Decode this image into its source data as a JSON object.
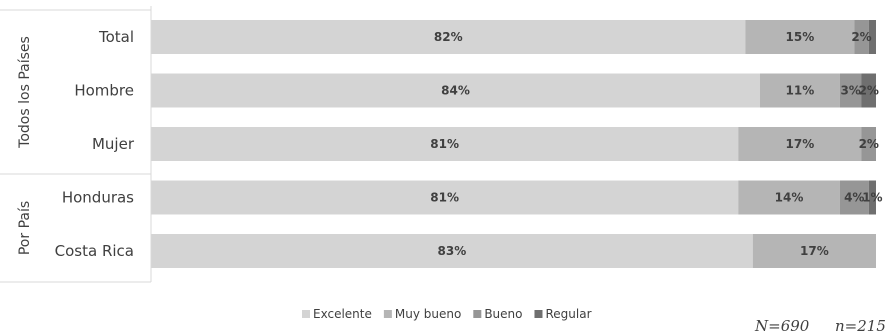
{
  "chart_data": {
    "type": "bar",
    "orientation": "horizontal",
    "stacked": true,
    "percent": true,
    "xlim": [
      0,
      100
    ],
    "groups": [
      {
        "label": "Todos los Países",
        "categories": [
          "Total",
          "Hombre",
          "Mujer"
        ]
      },
      {
        "label": "Por País",
        "categories": [
          "Honduras",
          "Costa Rica"
        ]
      }
    ],
    "categories": [
      "Total",
      "Hombre",
      "Mujer",
      "Honduras",
      "Costa Rica"
    ],
    "series": [
      {
        "name": "Excelente",
        "color": "#d4d4d4",
        "values": [
          82,
          84,
          81,
          81,
          83
        ],
        "labels": [
          "82%",
          "84%",
          "81%",
          "81%",
          "83%"
        ]
      },
      {
        "name": "Muy bueno",
        "color": "#b5b5b5",
        "values": [
          15,
          11,
          17,
          14,
          17
        ],
        "labels": [
          "15%",
          "11%",
          "17%",
          "14%",
          "17%"
        ]
      },
      {
        "name": "Bueno",
        "color": "#969696",
        "values": [
          2,
          3,
          2,
          4,
          0
        ],
        "labels": [
          "2%",
          "3%",
          "2%",
          "4%",
          ""
        ]
      },
      {
        "name": "Regular",
        "color": "#6f6f6f",
        "values": [
          1,
          2,
          0,
          1,
          0
        ],
        "labels": [
          "",
          "2%",
          "",
          "1%",
          ""
        ]
      }
    ],
    "legend_position": "bottom",
    "grid": false
  },
  "notes": {
    "n_total": "N=690",
    "n_sub": "n=215"
  }
}
